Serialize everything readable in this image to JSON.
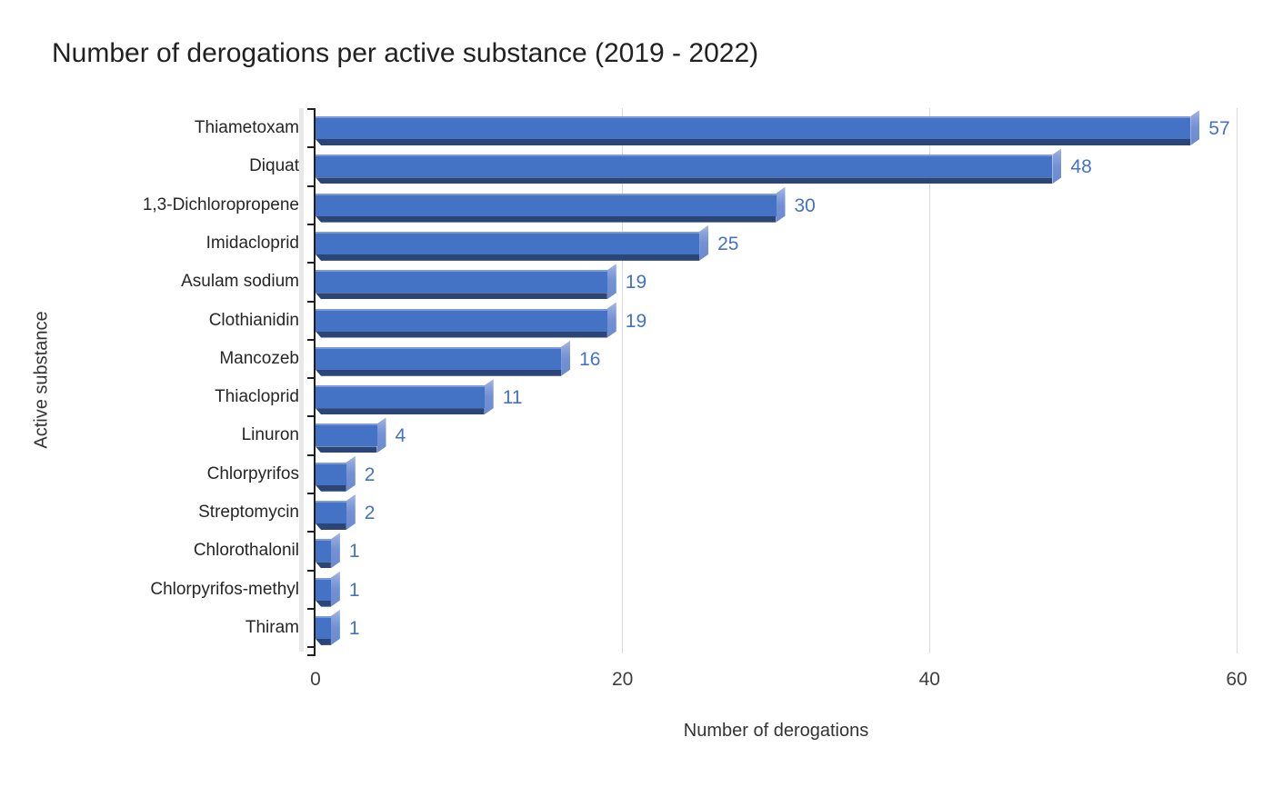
{
  "title": "Number of derogations per active substance (2019 - 2022)",
  "chart_data": {
    "type": "bar",
    "orientation": "horizontal",
    "style": "3d-bevel-excel",
    "title": "Number of derogations per active substance (2019 - 2022)",
    "xlabel": "Number of derogations",
    "ylabel": "Active substance",
    "categories": [
      "Thiametoxam",
      "Diquat",
      "1,3-Dichloropropene",
      "Imidacloprid",
      "Asulam sodium",
      "Clothianidin",
      "Mancozeb",
      "Thiacloprid",
      "Linuron",
      "Chlorpyrifos",
      "Streptomycin",
      "Chlorothalonil",
      "Chlorpyrifos-methyl",
      "Thiram"
    ],
    "values": [
      57,
      48,
      30,
      25,
      19,
      19,
      16,
      11,
      4,
      2,
      2,
      1,
      1,
      1
    ],
    "data_labels": [
      "57",
      "48",
      "30",
      "25",
      "19",
      "19",
      "16",
      "11",
      "4",
      "2",
      "2",
      "1",
      "1",
      "1"
    ],
    "xlim": [
      0,
      60
    ],
    "x_ticks": [
      "0",
      "20",
      "40",
      "60"
    ],
    "x_tick_values": [
      0,
      20,
      40,
      60
    ],
    "grid": "vertical-only",
    "legend": "none",
    "colors": {
      "bar_face": "#4472C4",
      "bar_top_highlight": "#7C99D8",
      "bar_side_cap": "#7390D3",
      "bar_bottom_shadow": "#2B4577",
      "value_label": "#4472C4",
      "gridline": "#D9D9D9",
      "axis_line": "#1F1F1F",
      "text": "#262626",
      "background": "#FFFFFF"
    }
  }
}
